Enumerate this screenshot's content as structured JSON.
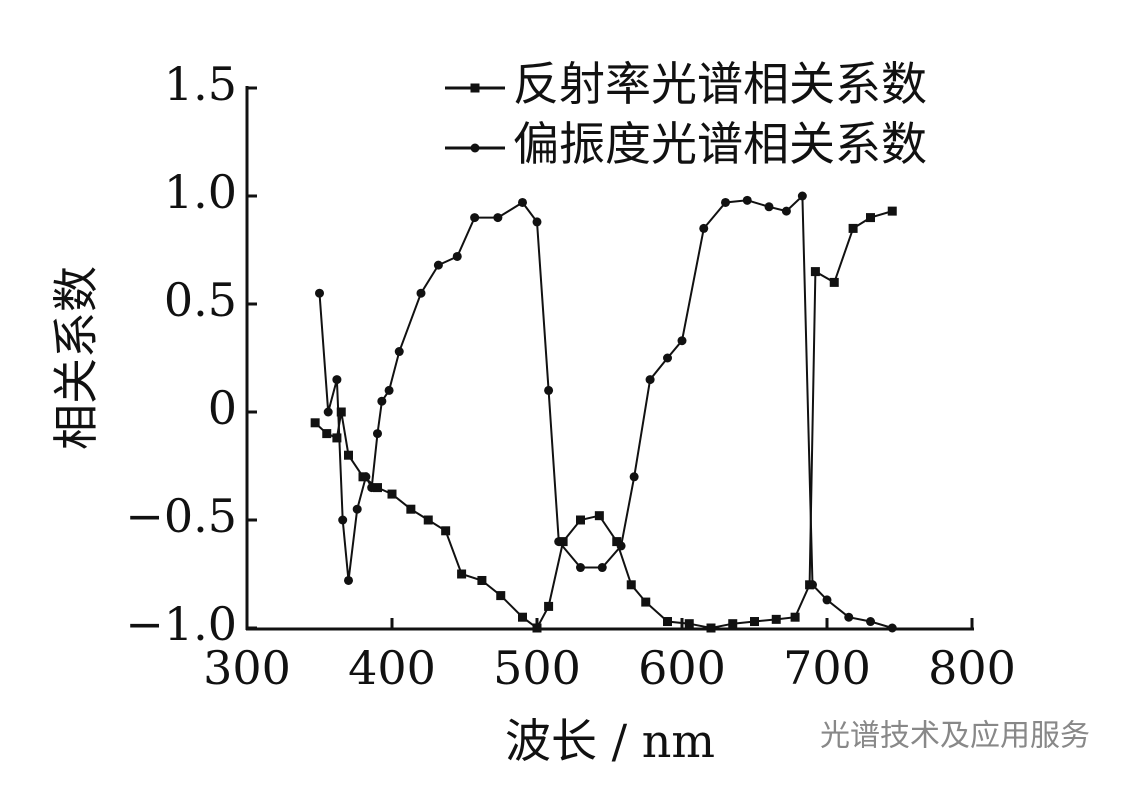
{
  "chart_data": {
    "type": "line",
    "xlabel": "波长 / nm",
    "ylabel": "相关系数",
    "watermark": "光谱技术及应用服务",
    "xlim": [
      300,
      800
    ],
    "xticks": [
      300,
      400,
      500,
      600,
      700,
      800
    ],
    "ylim": [
      -1,
      1.5
    ],
    "yticks": [
      {
        "value": -1,
        "label": "−1.0"
      },
      {
        "value": -0.5,
        "label": "−0.5"
      },
      0,
      0.5,
      {
        "value": 1,
        "label": "1.0"
      },
      1.5
    ],
    "legend": "top-right",
    "series": [
      {
        "name": "反射率光谱相关系数",
        "color": "#111111",
        "marker": "square",
        "x": [
          347,
          355,
          362,
          365,
          370,
          380,
          390,
          400,
          413,
          425,
          437,
          448,
          462,
          475,
          490,
          500,
          508,
          518,
          530,
          543,
          555,
          565,
          575,
          590,
          605,
          620,
          635,
          650,
          665,
          678,
          688,
          692,
          705,
          718,
          730,
          745
        ],
        "values": [
          -0.05,
          -0.1,
          -0.12,
          0.0,
          -0.2,
          -0.3,
          -0.35,
          -0.38,
          -0.45,
          -0.5,
          -0.55,
          -0.75,
          -0.78,
          -0.85,
          -0.95,
          -1.0,
          -0.9,
          -0.6,
          -0.5,
          -0.48,
          -0.6,
          -0.8,
          -0.88,
          -0.97,
          -0.98,
          -1.0,
          -0.98,
          -0.97,
          -0.96,
          -0.95,
          -0.8,
          0.65,
          0.6,
          0.85,
          0.9,
          0.93
        ]
      },
      {
        "name": "偏振度光谱相关系数",
        "color": "#111111",
        "marker": "circle",
        "x": [
          350,
          356,
          362,
          366,
          370,
          376,
          382,
          386,
          390,
          393,
          398,
          405,
          420,
          432,
          445,
          457,
          473,
          490,
          500,
          508,
          515,
          530,
          545,
          558,
          567,
          578,
          590,
          600,
          615,
          630,
          645,
          660,
          672,
          683,
          690,
          700,
          715,
          730,
          745
        ],
        "values": [
          0.55,
          0.0,
          0.15,
          -0.5,
          -0.78,
          -0.45,
          -0.3,
          -0.35,
          -0.1,
          0.05,
          0.1,
          0.28,
          0.55,
          0.68,
          0.72,
          0.9,
          0.9,
          0.97,
          0.88,
          0.1,
          -0.6,
          -0.72,
          -0.72,
          -0.62,
          -0.3,
          0.15,
          0.25,
          0.33,
          0.85,
          0.97,
          0.98,
          0.95,
          0.93,
          1.0,
          -0.8,
          -0.87,
          -0.95,
          -0.97,
          -1.0
        ]
      }
    ]
  }
}
